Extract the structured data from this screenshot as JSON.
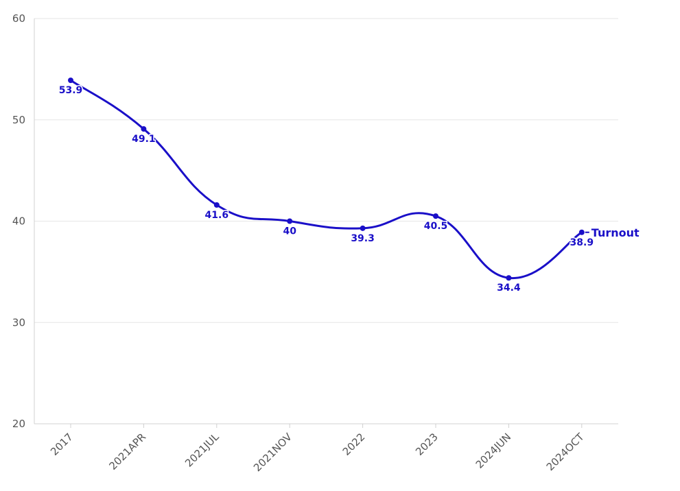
{
  "chart_data": {
    "type": "line",
    "title": "",
    "xlabel": "",
    "ylabel": "",
    "categories": [
      "2017",
      "2021APR",
      "2021JUL",
      "2021NOV",
      "2022",
      "2023",
      "2024JUN",
      "2024OCT"
    ],
    "series": [
      {
        "name": "Turnout",
        "values": [
          53.9,
          49.1,
          41.6,
          40,
          39.3,
          40.5,
          34.4,
          38.9
        ],
        "color": "#1a0fc8",
        "labels": [
          "53.9",
          "49.1",
          "41.6",
          "40",
          "39.3",
          "40.5",
          "34.4",
          "38.9"
        ]
      }
    ],
    "ylim": [
      20,
      60
    ],
    "yticks": [
      "20",
      "30",
      "40",
      "50",
      "60"
    ],
    "grid": "horizontal",
    "legend": "inline-end",
    "gridColor": "#e6e6e6",
    "axisColor": "#d0d0d0"
  }
}
